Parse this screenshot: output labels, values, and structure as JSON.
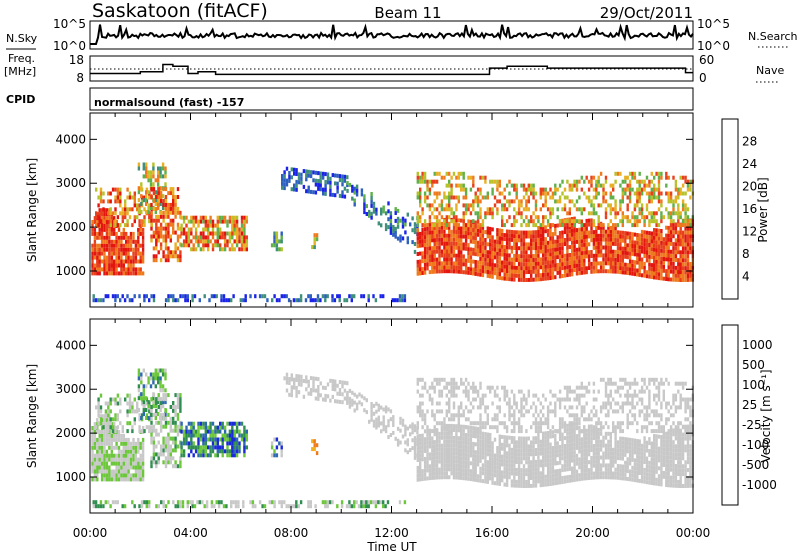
{
  "header": {
    "station": "Saskatoon (fitACF)",
    "beam": "Beam 11",
    "date": "29/Oct/2011"
  },
  "chart_data": [
    {
      "type": "line",
      "name": "noise-panel",
      "left_label": "N.Sky",
      "right_label": "N.Search",
      "y_ticks_left": [
        "10^5",
        "10^0"
      ],
      "y_ticks_right": [
        "10^5",
        "10^0"
      ]
    },
    {
      "type": "line",
      "name": "frequency-panel",
      "left_label_line1": "Freq.",
      "left_label_line2": "[MHz]",
      "right_label": "Nave",
      "y_ticks_left": [
        "18",
        "8"
      ],
      "y_ticks_right": [
        "60",
        "0"
      ],
      "freq_steps_hours": [
        0,
        0.4,
        2.0,
        2.9,
        3.3,
        3.9,
        4.3,
        5.0,
        14.6,
        15.9,
        16.4,
        16.6,
        18.2,
        22.3,
        23.7,
        24
      ],
      "freq_values_mhz": [
        10.5,
        10.5,
        11.5,
        15.5,
        14.5,
        10.5,
        11.5,
        10,
        10,
        13.5,
        13.5,
        14.5,
        13.5,
        13.5,
        11,
        11
      ],
      "nave_value": 30
    },
    {
      "type": "table",
      "name": "cpid-strip",
      "label": "CPID",
      "program": "normalsound (fast) -157"
    },
    {
      "type": "heatmap",
      "name": "power-panel",
      "ylabel": "Slant Range [km]",
      "ylim": [
        180,
        4600
      ],
      "y_ticks": [
        1000,
        2000,
        3000,
        4000
      ],
      "colorbar_label": "Power [dB]",
      "colorbar_ticks": [
        "4",
        "8",
        "12",
        "16",
        "20",
        "24",
        "28"
      ],
      "colors": [
        "#1a23e6",
        "#2d5fbf",
        "#3f8f7a",
        "#5fb04a",
        "#b5c229",
        "#e8b024",
        "#ef7a1e",
        "#e8401c",
        "#e2150f"
      ]
    },
    {
      "type": "heatmap",
      "name": "velocity-panel",
      "ylabel": "Slant Range [km]",
      "ylim": [
        180,
        4600
      ],
      "y_ticks": [
        1000,
        2000,
        3000,
        4000
      ],
      "colorbar_label": "Velocity [m s⁻¹]",
      "colorbar_ticks": [
        "1000",
        "500",
        "100",
        "25",
        "-25",
        "-100",
        "-500",
        "-1000"
      ],
      "colors": [
        "#1a2ad8",
        "#2d69b0",
        "#2f8e4f",
        "#6cc83a",
        "#c8c8c8",
        "#c8c8c8",
        "#f2b01e",
        "#ef7a1e",
        "#e8401c",
        "#e2150f"
      ]
    }
  ],
  "x_axis": {
    "label": "Time UT",
    "xlim_hours": [
      0,
      24
    ],
    "tick_hours": [
      0,
      4,
      8,
      12,
      16,
      20,
      24
    ],
    "tick_labels": [
      "00:00",
      "04:00",
      "08:00",
      "12:00",
      "16:00",
      "20:00",
      "00:00"
    ]
  }
}
